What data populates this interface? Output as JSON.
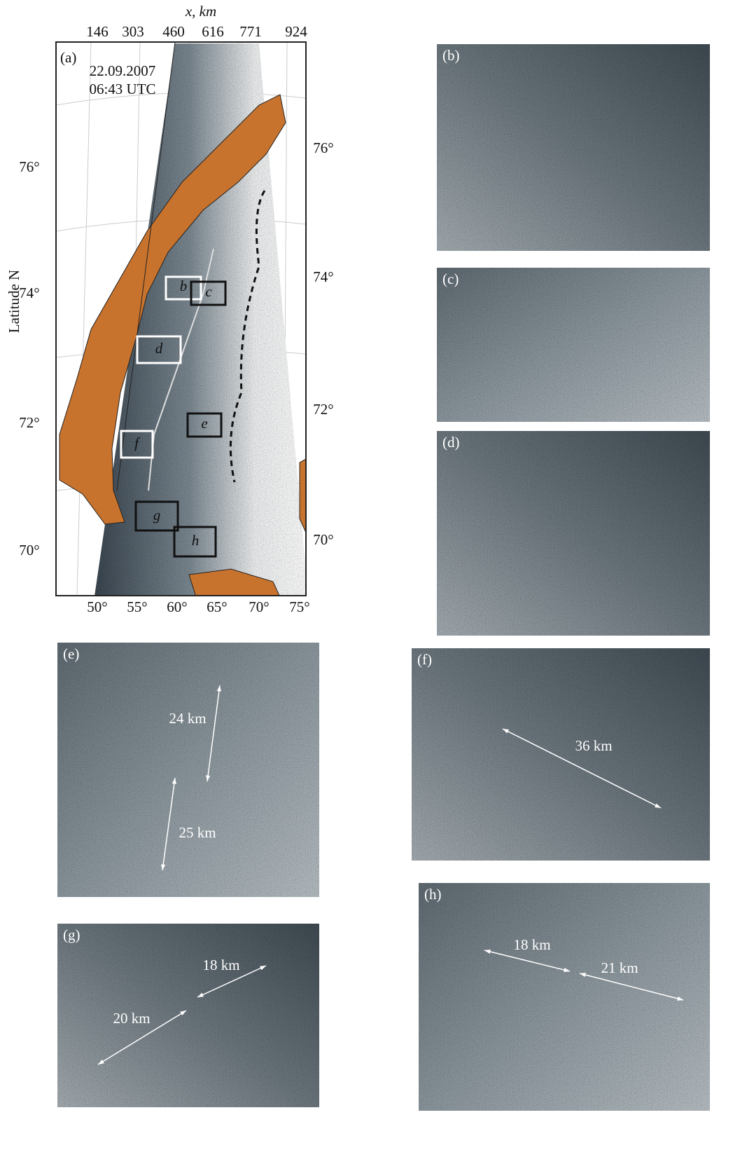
{
  "map": {
    "panel_label": "(a)",
    "date": "22.09.2007",
    "time": "06:43 UTC",
    "x_axis_title": "x, km",
    "x_ticks": [
      "146",
      "303",
      "460",
      "616",
      "771",
      "924"
    ],
    "y_axis_title": "Latitude N",
    "lat_left": [
      "76°",
      "74°",
      "72°",
      "70°"
    ],
    "lat_right": [
      "76°",
      "74°",
      "72°",
      "70°"
    ],
    "lon_bottom": [
      "50°",
      "55°",
      "60°",
      "65°",
      "70°",
      "75°"
    ],
    "boxes": [
      "b",
      "c",
      "d",
      "e",
      "f",
      "g",
      "h"
    ]
  },
  "panels": [
    {
      "label": "(b)",
      "annotations": []
    },
    {
      "label": "(c)",
      "annotations": []
    },
    {
      "label": "(d)",
      "annotations": []
    },
    {
      "label": "(e)",
      "annotations": [
        "24 km",
        "25 km"
      ]
    },
    {
      "label": "(f)",
      "annotations": [
        "36 km"
      ]
    },
    {
      "label": "(g)",
      "annotations": [
        "18 km",
        "20 km"
      ]
    },
    {
      "label": "(h)",
      "annotations": [
        "18 km",
        "21 km"
      ]
    }
  ]
}
